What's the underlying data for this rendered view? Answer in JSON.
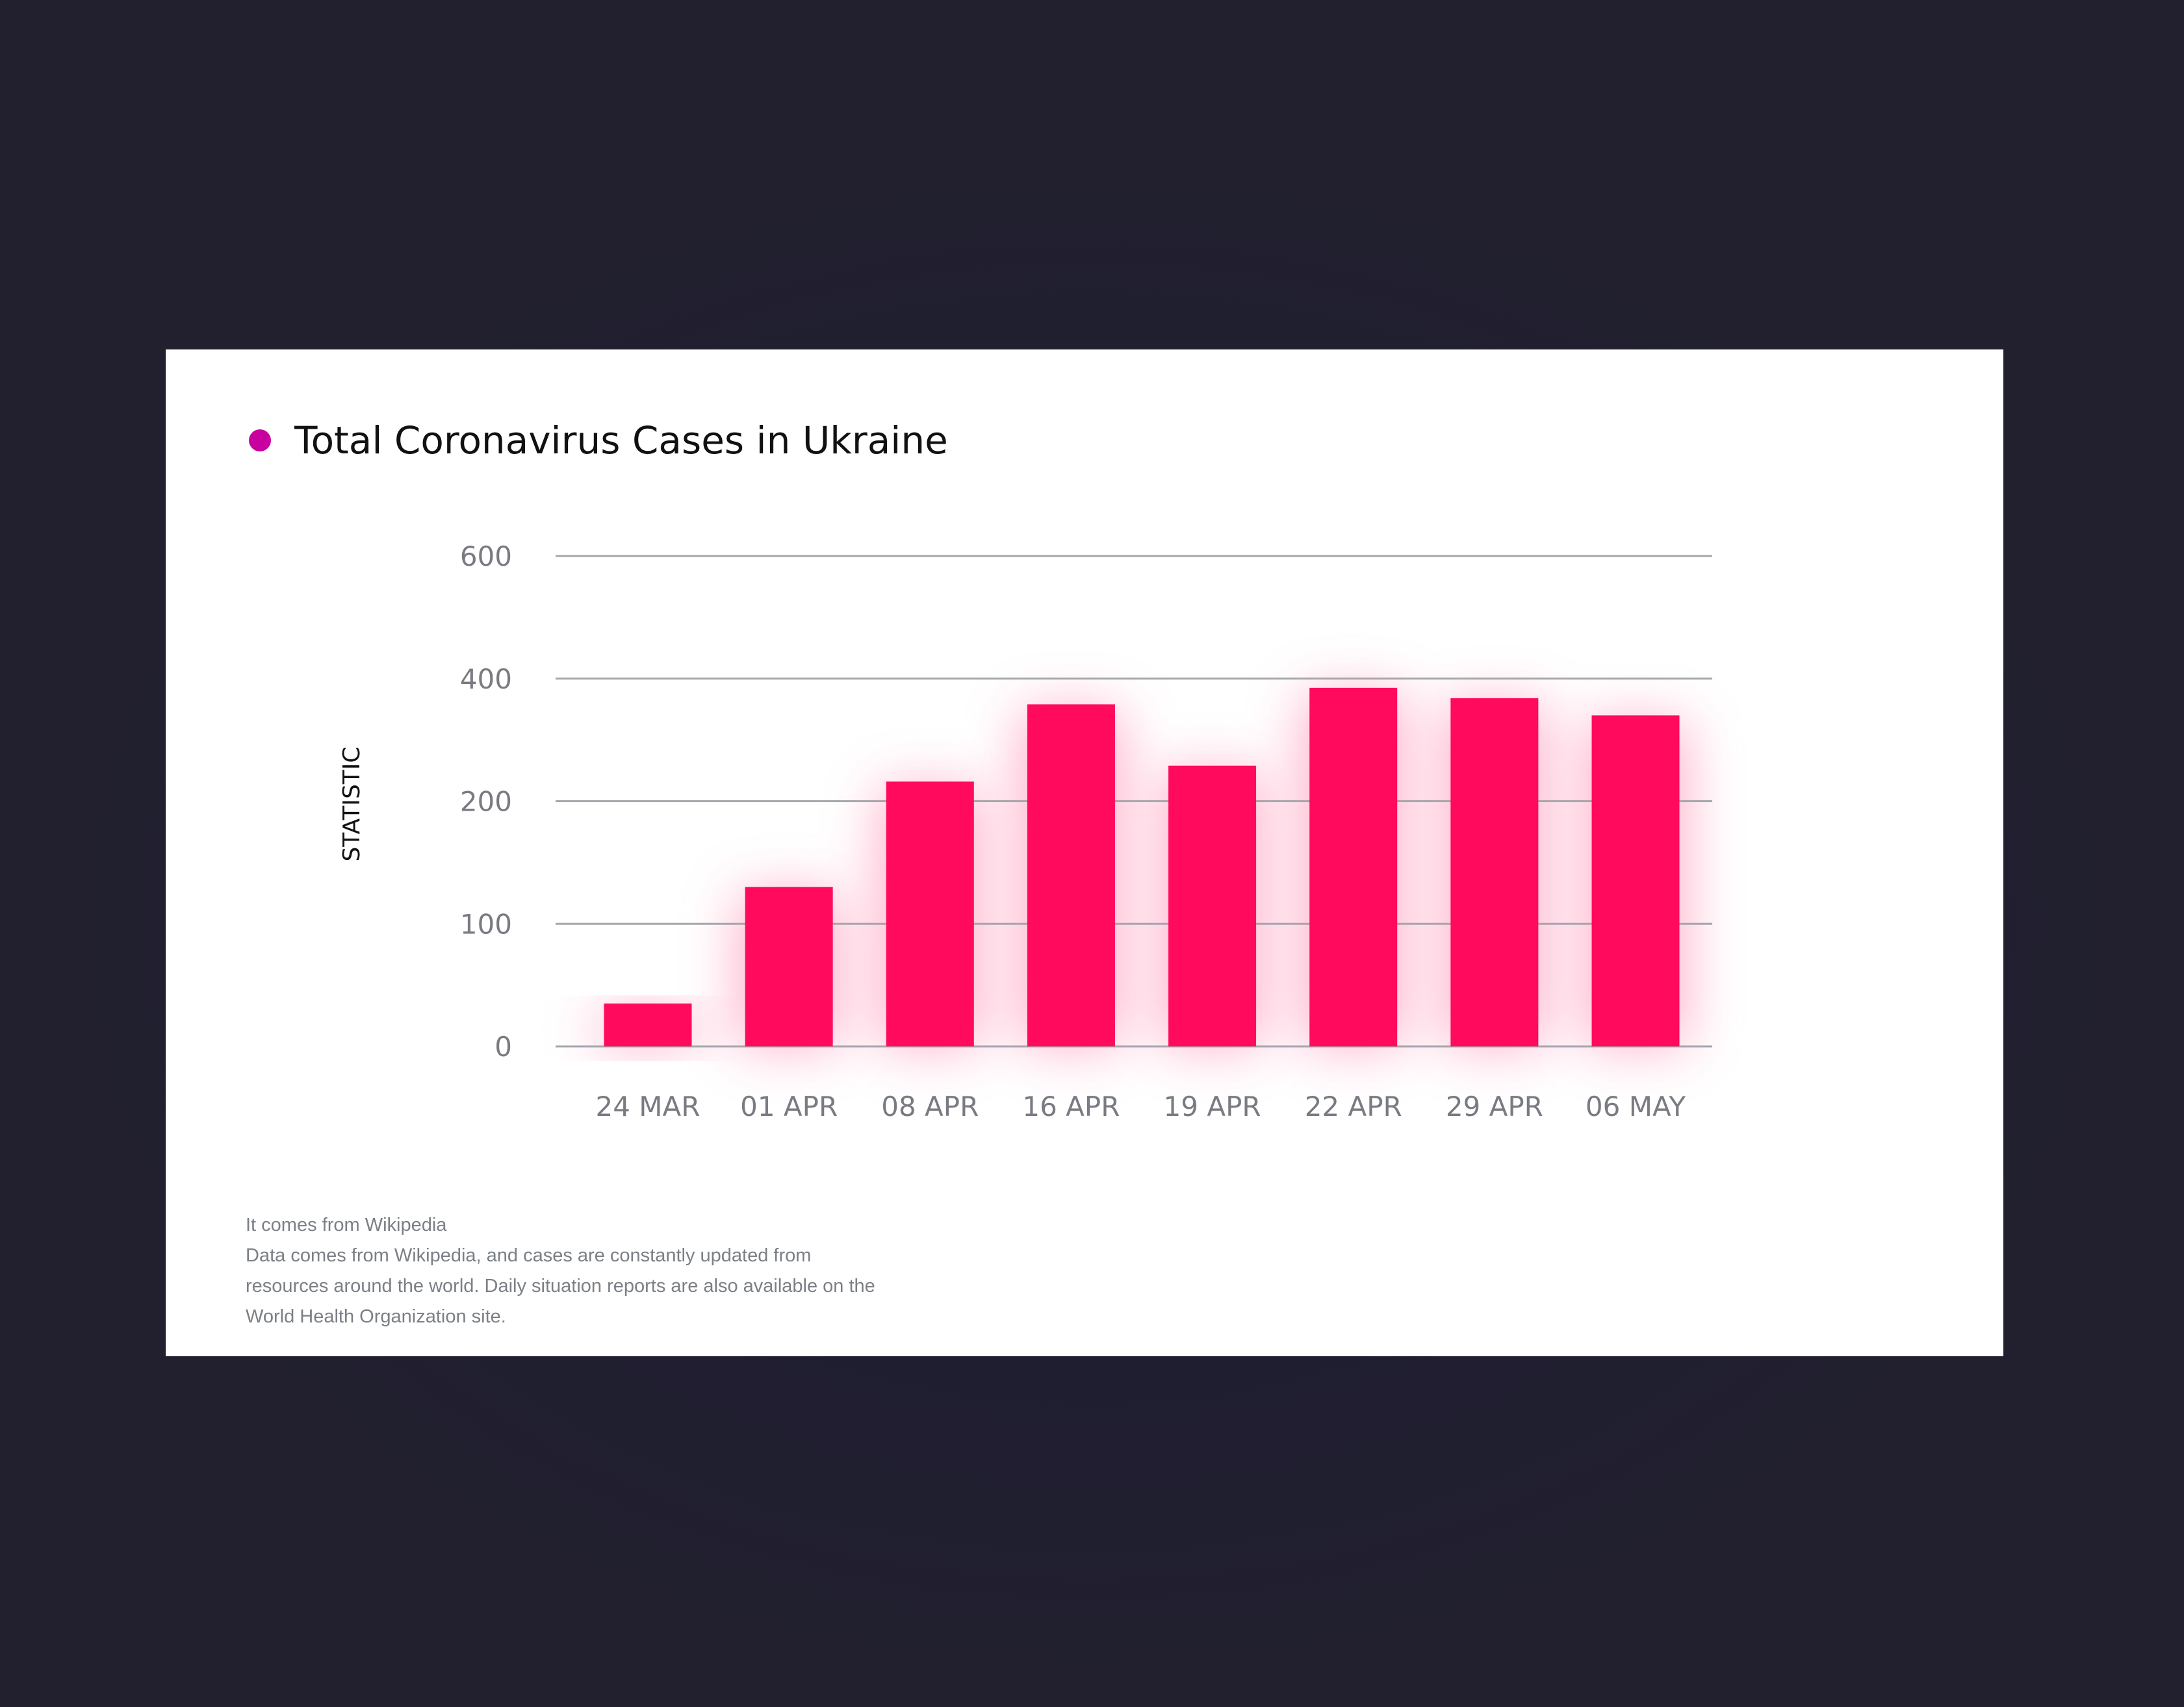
{
  "colors": {
    "page_background": "#22202e",
    "card_background": "#ffffff",
    "bar": "#ff0a5c",
    "bar_glow": "#ff6fa0",
    "title_dot": "#c8009f",
    "gridline": "#a6a6ad",
    "tick_text": "#7a7a82"
  },
  "title": {
    "text": "Total Coronavirus Cases in Ukraine",
    "marker_icon": "dot-icon"
  },
  "chart_data": {
    "type": "bar",
    "title": "Total Coronavirus Cases in Ukraine",
    "xlabel": "",
    "ylabel": "STATISTIC",
    "categories": [
      "24 MAR",
      "01 APR",
      "08 APR",
      "16 APR",
      "19 APR",
      "22 APR",
      "29 APR",
      "06 MAY"
    ],
    "values": [
      35,
      130,
      232,
      358,
      258,
      385,
      368,
      340
    ],
    "yticks": [
      0,
      100,
      200,
      400,
      600
    ],
    "ytick_labels": [
      "0",
      "100",
      "200",
      "400",
      "600"
    ],
    "ylim": [
      0,
      600
    ],
    "y_scale": "non-uniform (equally spaced ticks: 0, 100, 200, 400, 600)",
    "grid": true,
    "legend": "none"
  },
  "notes": {
    "lines": [
      "It comes from Wikipedia",
      "Data comes from Wikipedia, and cases are constantly updated from",
      "resources around the world. Daily situation reports are also available on the",
      "World Health Organization site."
    ]
  }
}
